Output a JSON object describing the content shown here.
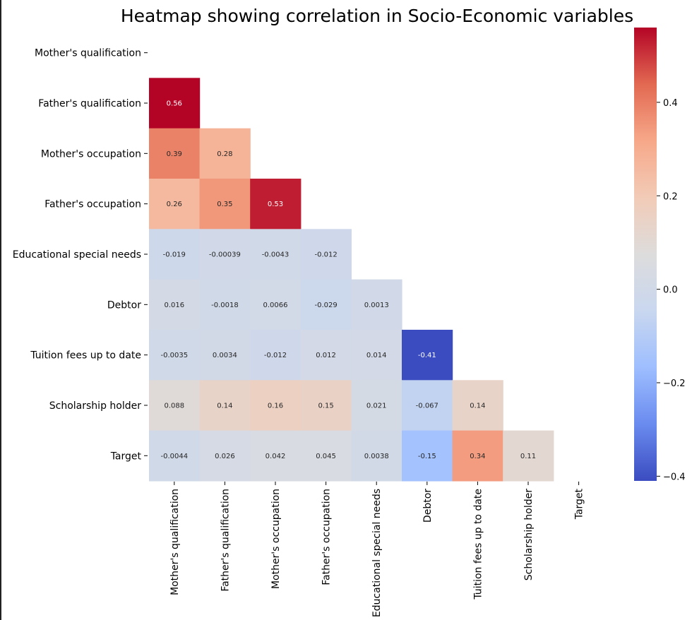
{
  "chart_data": {
    "type": "heatmap",
    "title": "Heatmap showing correlation in Socio-Economic variables",
    "variables": [
      "Mother's qualification",
      "Father's qualification",
      "Mother's occupation",
      "Father's occupation",
      "Educational special needs",
      "Debtor",
      "Tuition fees up to date",
      "Scholarship holder",
      "Target"
    ],
    "mask": "upper triangle including diagonal",
    "cells": [
      {
        "row": 1,
        "col": 0,
        "value": 0.56,
        "label": "0.56"
      },
      {
        "row": 2,
        "col": 0,
        "value": 0.39,
        "label": "0.39"
      },
      {
        "row": 2,
        "col": 1,
        "value": 0.28,
        "label": "0.28"
      },
      {
        "row": 3,
        "col": 0,
        "value": 0.26,
        "label": "0.26"
      },
      {
        "row": 3,
        "col": 1,
        "value": 0.35,
        "label": "0.35"
      },
      {
        "row": 3,
        "col": 2,
        "value": 0.53,
        "label": "0.53"
      },
      {
        "row": 4,
        "col": 0,
        "value": -0.019,
        "label": "-0.019"
      },
      {
        "row": 4,
        "col": 1,
        "value": -0.00039,
        "label": "-0.00039"
      },
      {
        "row": 4,
        "col": 2,
        "value": -0.0043,
        "label": "-0.0043"
      },
      {
        "row": 4,
        "col": 3,
        "value": -0.012,
        "label": "-0.012"
      },
      {
        "row": 5,
        "col": 0,
        "value": 0.016,
        "label": "0.016"
      },
      {
        "row": 5,
        "col": 1,
        "value": -0.0018,
        "label": "-0.0018"
      },
      {
        "row": 5,
        "col": 2,
        "value": 0.0066,
        "label": "0.0066"
      },
      {
        "row": 5,
        "col": 3,
        "value": -0.029,
        "label": "-0.029"
      },
      {
        "row": 5,
        "col": 4,
        "value": 0.0013,
        "label": "0.0013"
      },
      {
        "row": 6,
        "col": 0,
        "value": -0.0035,
        "label": "-0.0035"
      },
      {
        "row": 6,
        "col": 1,
        "value": 0.0034,
        "label": "0.0034"
      },
      {
        "row": 6,
        "col": 2,
        "value": -0.012,
        "label": "-0.012"
      },
      {
        "row": 6,
        "col": 3,
        "value": 0.012,
        "label": "0.012"
      },
      {
        "row": 6,
        "col": 4,
        "value": 0.014,
        "label": "0.014"
      },
      {
        "row": 6,
        "col": 5,
        "value": -0.41,
        "label": "-0.41"
      },
      {
        "row": 7,
        "col": 0,
        "value": 0.088,
        "label": "0.088"
      },
      {
        "row": 7,
        "col": 1,
        "value": 0.14,
        "label": "0.14"
      },
      {
        "row": 7,
        "col": 2,
        "value": 0.16,
        "label": "0.16"
      },
      {
        "row": 7,
        "col": 3,
        "value": 0.15,
        "label": "0.15"
      },
      {
        "row": 7,
        "col": 4,
        "value": 0.021,
        "label": "0.021"
      },
      {
        "row": 7,
        "col": 5,
        "value": -0.067,
        "label": "-0.067"
      },
      {
        "row": 7,
        "col": 6,
        "value": 0.14,
        "label": "0.14"
      },
      {
        "row": 8,
        "col": 0,
        "value": -0.0044,
        "label": "-0.0044"
      },
      {
        "row": 8,
        "col": 1,
        "value": 0.026,
        "label": "0.026"
      },
      {
        "row": 8,
        "col": 2,
        "value": 0.042,
        "label": "0.042"
      },
      {
        "row": 8,
        "col": 3,
        "value": 0.045,
        "label": "0.045"
      },
      {
        "row": 8,
        "col": 4,
        "value": 0.0038,
        "label": "0.0038"
      },
      {
        "row": 8,
        "col": 5,
        "value": -0.15,
        "label": "-0.15"
      },
      {
        "row": 8,
        "col": 6,
        "value": 0.34,
        "label": "0.34"
      },
      {
        "row": 8,
        "col": 7,
        "value": 0.11,
        "label": "0.11"
      }
    ],
    "colormap": "coolwarm",
    "vmin": -0.41,
    "vmax": 0.56,
    "colorbar_ticks": [
      {
        "value": 0.4,
        "label": "0.4"
      },
      {
        "value": 0.2,
        "label": "0.2"
      },
      {
        "value": 0.0,
        "label": "0.0"
      },
      {
        "value": -0.2,
        "label": "−0.2"
      },
      {
        "value": -0.4,
        "label": "−0.4"
      }
    ],
    "colormap_stops": [
      "#3b4cc0",
      "#6a8bef",
      "#9ebeff",
      "#c9d7ef",
      "#dddcdc",
      "#f2cbb7",
      "#f7a889",
      "#e26952",
      "#b40426"
    ]
  }
}
